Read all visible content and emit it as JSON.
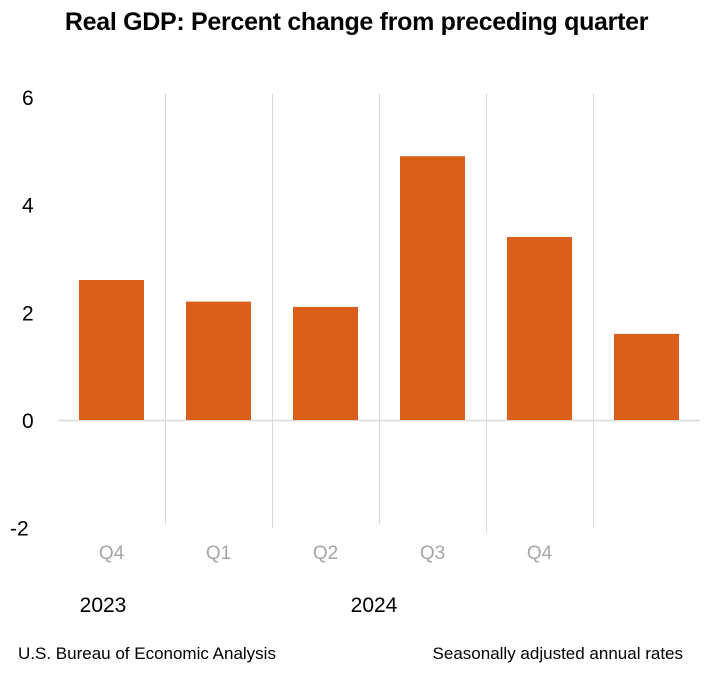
{
  "chart_data": {
    "type": "bar",
    "title": "Real GDP:  Percent change from preceding quarter",
    "xlabel": "",
    "ylabel": "",
    "ylim": [
      -2,
      6
    ],
    "yticks": [
      6,
      4,
      2,
      0,
      -2
    ],
    "categories": [
      "Q4",
      "Q1",
      "Q2",
      "Q3",
      "Q4",
      ""
    ],
    "years": [
      {
        "label": "2023",
        "start_index": 0
      },
      {
        "label": "2024",
        "start_index": 1
      }
    ],
    "series": [
      {
        "name": "Real GDP",
        "values": [
          2.6,
          2.2,
          2.1,
          4.9,
          3.4,
          1.6
        ]
      }
    ],
    "grid": "vertical separators between categories",
    "bar_color": "#d95f1a",
    "gridline_color": "#d9d9d9"
  },
  "footer": {
    "source": "U.S. Bureau of Economic Analysis",
    "note": "Seasonally adjusted annual rates"
  }
}
